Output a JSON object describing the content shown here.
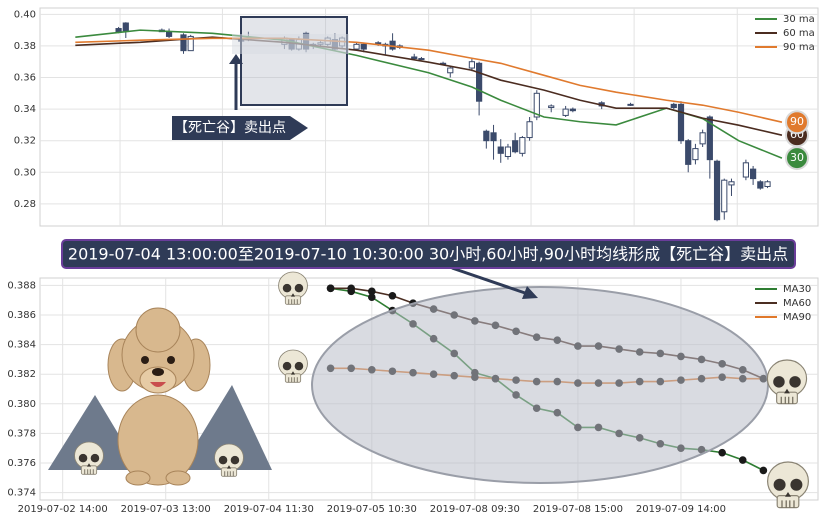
{
  "chart_data": [
    {
      "type": "candlestick",
      "candle_color": "#3b4a6b",
      "candles": {
        "x": [
          7,
          8,
          13,
          14,
          16,
          17,
          24,
          25,
          30,
          31,
          32,
          33,
          34,
          35,
          36,
          37,
          38,
          40,
          41,
          43,
          44,
          45,
          46,
          48,
          49,
          52,
          53,
          56,
          57,
          58,
          59,
          60,
          61,
          62,
          63,
          64,
          65,
          67,
          69,
          70,
          74,
          78,
          84,
          85,
          86,
          87,
          88,
          89,
          90,
          91,
          92,
          94,
          95,
          96,
          97
        ],
        "open": [
          0.391,
          0.3945,
          0.39,
          0.389,
          0.387,
          0.377,
          0.385,
          0.384,
          0.381,
          0.384,
          0.378,
          0.388,
          0.38,
          0.381,
          0.381,
          0.384,
          0.38,
          0.378,
          0.381,
          0.382,
          0.38,
          0.383,
          0.379,
          0.373,
          0.372,
          0.369,
          0.363,
          0.366,
          0.369,
          0.326,
          0.325,
          0.316,
          0.31,
          0.32,
          0.312,
          0.322,
          0.335,
          0.341,
          0.336,
          0.34,
          0.344,
          0.343,
          0.343,
          0.343,
          0.32,
          0.308,
          0.318,
          0.335,
          0.307,
          0.275,
          0.292,
          0.297,
          0.302,
          0.294,
          0.291
        ],
        "high": [
          0.392,
          0.395,
          0.391,
          0.391,
          0.388,
          0.387,
          0.386,
          0.389,
          0.386,
          0.385,
          0.386,
          0.389,
          0.382,
          0.383,
          0.386,
          0.388,
          0.386,
          0.382,
          0.382,
          0.383,
          0.382,
          0.388,
          0.381,
          0.375,
          0.373,
          0.37,
          0.367,
          0.372,
          0.37,
          0.327,
          0.33,
          0.321,
          0.318,
          0.325,
          0.323,
          0.335,
          0.352,
          0.343,
          0.342,
          0.341,
          0.345,
          0.344,
          0.344,
          0.345,
          0.321,
          0.318,
          0.327,
          0.336,
          0.308,
          0.296,
          0.296,
          0.308,
          0.304,
          0.295,
          0.295
        ],
        "low": [
          0.388,
          0.385,
          0.389,
          0.385,
          0.375,
          0.377,
          0.382,
          0.383,
          0.378,
          0.377,
          0.377,
          0.376,
          0.378,
          0.38,
          0.38,
          0.377,
          0.378,
          0.377,
          0.376,
          0.38,
          0.374,
          0.377,
          0.378,
          0.371,
          0.371,
          0.368,
          0.36,
          0.364,
          0.336,
          0.315,
          0.308,
          0.306,
          0.308,
          0.312,
          0.31,
          0.32,
          0.333,
          0.338,
          0.335,
          0.338,
          0.34,
          0.342,
          0.34,
          0.318,
          0.3,
          0.305,
          0.316,
          0.296,
          0.269,
          0.27,
          0.285,
          0.295,
          0.292,
          0.289,
          0.29
        ],
        "close": [
          0.389,
          0.3895,
          0.389,
          0.386,
          0.377,
          0.386,
          0.383,
          0.385,
          0.385,
          0.378,
          0.384,
          0.378,
          0.381,
          0.382,
          0.385,
          0.378,
          0.385,
          0.381,
          0.378,
          0.381,
          0.381,
          0.378,
          0.38,
          0.372,
          0.372,
          0.369,
          0.366,
          0.37,
          0.345,
          0.32,
          0.32,
          0.312,
          0.316,
          0.313,
          0.322,
          0.332,
          0.35,
          0.342,
          0.34,
          0.339,
          0.342,
          0.343,
          0.341,
          0.32,
          0.305,
          0.315,
          0.325,
          0.308,
          0.27,
          0.295,
          0.294,
          0.306,
          0.296,
          0.29,
          0.294
        ]
      },
      "series": [
        {
          "name": "30 ma",
          "badge": "30",
          "color": "#3b8a3e",
          "x": [
            1,
            10,
            20,
            30,
            40,
            50,
            56,
            60,
            66,
            71,
            76,
            83,
            88,
            93,
            99
          ],
          "values": [
            0.3855,
            0.39,
            0.388,
            0.3836,
            0.374,
            0.363,
            0.354,
            0.3456,
            0.335,
            0.332,
            0.33,
            0.3406,
            0.334,
            0.32,
            0.309
          ]
        },
        {
          "name": "60 ma",
          "badge": "60",
          "color": "#4b2c20",
          "x": [
            1,
            10,
            20,
            30,
            40,
            50,
            56,
            60,
            66,
            71,
            76,
            83,
            88,
            93,
            99
          ],
          "values": [
            0.3804,
            0.3823,
            0.3855,
            0.3823,
            0.3773,
            0.3697,
            0.3646,
            0.3583,
            0.352,
            0.3456,
            0.3406,
            0.3406,
            0.3343,
            0.3298,
            0.3235
          ]
        },
        {
          "name": "90 ma",
          "badge": "90",
          "color": "#e07a2e",
          "x": [
            1,
            10,
            20,
            30,
            40,
            50,
            56,
            60,
            66,
            71,
            76,
            83,
            88,
            93,
            99
          ],
          "values": [
            0.3823,
            0.3836,
            0.3848,
            0.3848,
            0.3823,
            0.3773,
            0.3722,
            0.369,
            0.3614,
            0.355,
            0.3507,
            0.3456,
            0.3425,
            0.338,
            0.3317
          ]
        }
      ],
      "xlim": [
        -3.9,
        104
      ],
      "xticks": [
        7.2,
        21.4,
        35.7,
        50,
        64.2,
        78.5,
        92.8
      ],
      "ylim": [
        0.266,
        0.404
      ],
      "yticks": [
        0.28,
        {
          "value": 0.3,
          "label": "0.30"
        },
        0.32,
        0.34,
        0.36,
        0.38,
        {
          "value": 0.4,
          "label": "0.40"
        }
      ],
      "grid": true,
      "legend": "upper right",
      "annotation": "【死亡谷】卖出点"
    },
    {
      "type": "line",
      "x": [
        13,
        14,
        15,
        16,
        17,
        18,
        19,
        20,
        21,
        22,
        23,
        24,
        25,
        26,
        27,
        28,
        29,
        30,
        31,
        32,
        33,
        34
      ],
      "series": [
        {
          "name": "MA30",
          "color": "#2e7d32",
          "values": [
            0.3878,
            0.3876,
            0.3872,
            0.3863,
            0.3854,
            0.3844,
            0.3834,
            0.3821,
            0.3817,
            0.3806,
            0.3797,
            0.3794,
            0.3784,
            0.3784,
            0.378,
            0.3777,
            0.3773,
            0.377,
            0.3769,
            0.3767,
            0.3762,
            0.3755
          ]
        },
        {
          "name": "MA60",
          "color": "#4b2e22",
          "values": [
            0.3878,
            0.3878,
            0.3876,
            0.3873,
            0.3868,
            0.3864,
            0.386,
            0.3856,
            0.3853,
            0.3849,
            0.3845,
            0.3843,
            0.3839,
            0.3839,
            0.3837,
            0.3835,
            0.3834,
            0.3832,
            0.383,
            0.3827,
            0.3823,
            0.3817
          ]
        },
        {
          "name": "MA90",
          "color": "#e0782a",
          "values": [
            0.3824,
            0.3824,
            0.3823,
            0.3822,
            0.3821,
            0.382,
            0.3819,
            0.3818,
            0.3817,
            0.3816,
            0.3815,
            0.3815,
            0.3814,
            0.3814,
            0.3814,
            0.3815,
            0.3815,
            0.3816,
            0.3817,
            0.3818,
            0.3817,
            0.3817
          ]
        }
      ],
      "xlim": [
        -1.1,
        36.65
      ],
      "xticks": [
        {
          "value": 0,
          "label": "2019-07-02 14:00"
        },
        {
          "value": 5,
          "label": "2019-07-03 13:00"
        },
        {
          "value": 10,
          "label": "2019-07-04 11:30"
        },
        {
          "value": 15,
          "label": "2019-07-05 10:30"
        },
        {
          "value": 20,
          "label": "2019-07-08 09:30"
        },
        {
          "value": 25,
          "label": "2019-07-08 15:00"
        },
        {
          "value": 30,
          "label": "2019-07-09 14:00"
        }
      ],
      "ylim": [
        0.3735,
        0.3885
      ],
      "yticks": [
        0.374,
        0.376,
        0.378,
        {
          "value": 0.38,
          "label": "0.380"
        },
        0.382,
        0.384,
        0.386,
        0.388
      ],
      "grid": true,
      "legend": "upper right"
    }
  ],
  "banner": "2019-07-04 13:00:00至2019-07-10 10:30:00 30小时,60小时,90小时均线形成【死亡谷】卖出点"
}
